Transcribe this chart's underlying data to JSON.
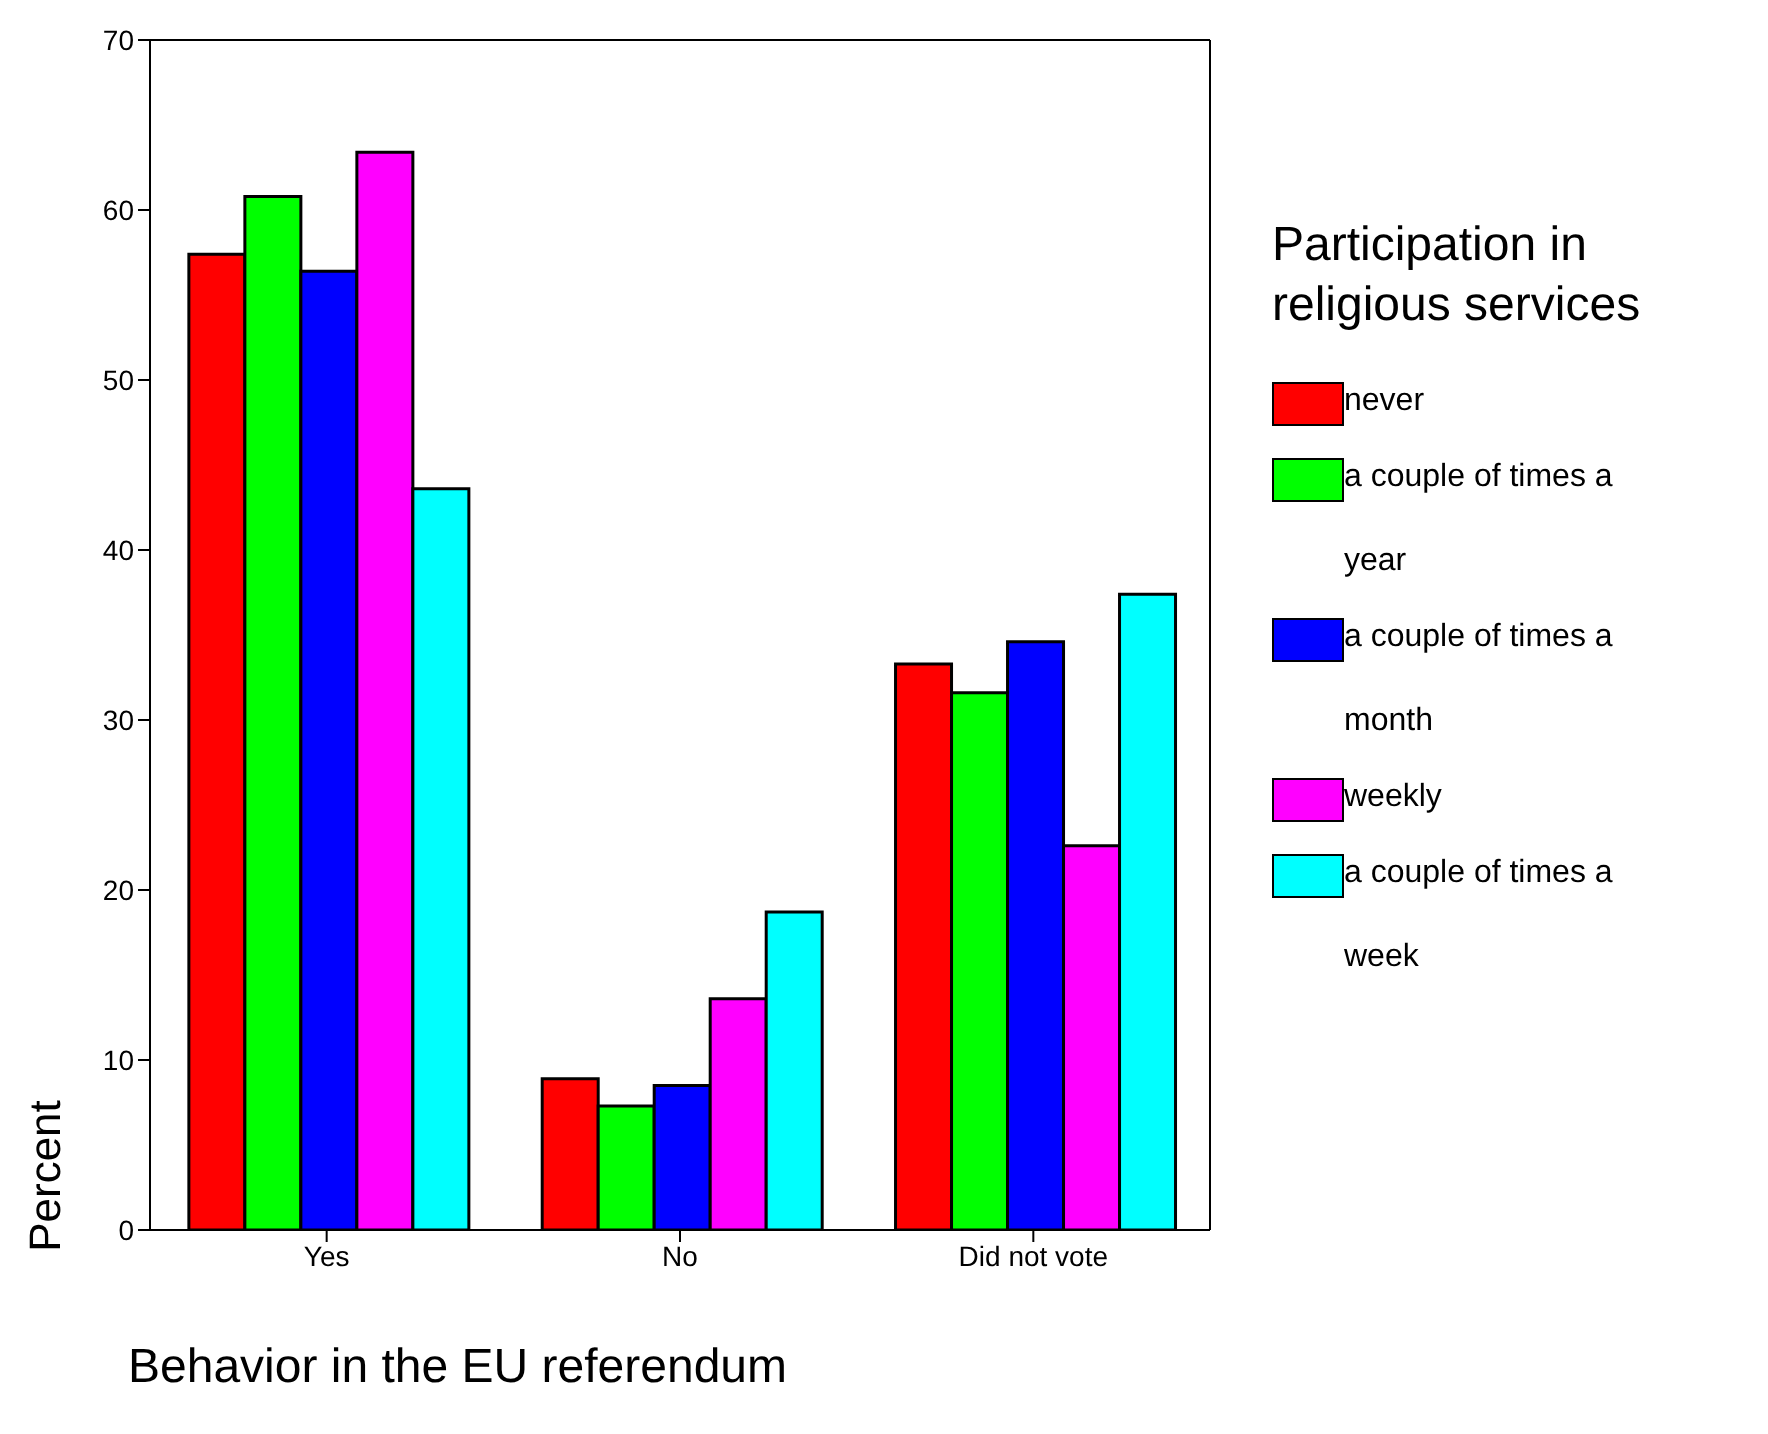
{
  "chart_data": {
    "type": "bar",
    "xlabel": "Behavior in the EU referendum",
    "ylabel": "Percent",
    "legend_title": "Participation in religious services",
    "categories": [
      "Yes",
      "No",
      "Did not vote"
    ],
    "series": [
      {
        "name": "never",
        "color": "#ff0000",
        "values": [
          57.4,
          8.9,
          33.3
        ]
      },
      {
        "name": "a couple of times a year",
        "color": "#00ff00",
        "values": [
          60.8,
          7.3,
          31.6
        ]
      },
      {
        "name": "a couple of times a month",
        "color": "#0000ff",
        "values": [
          56.4,
          8.5,
          34.6
        ]
      },
      {
        "name": "weekly",
        "color": "#ff00ff",
        "values": [
          63.4,
          13.6,
          22.6
        ]
      },
      {
        "name": "a couple of times a week",
        "color": "#00ffff",
        "values": [
          43.6,
          18.7,
          37.4
        ]
      }
    ],
    "ylim": [
      0,
      70
    ],
    "yticks": [
      0,
      10,
      20,
      30,
      40,
      50,
      60,
      70
    ],
    "grid": false,
    "legend": "right"
  }
}
